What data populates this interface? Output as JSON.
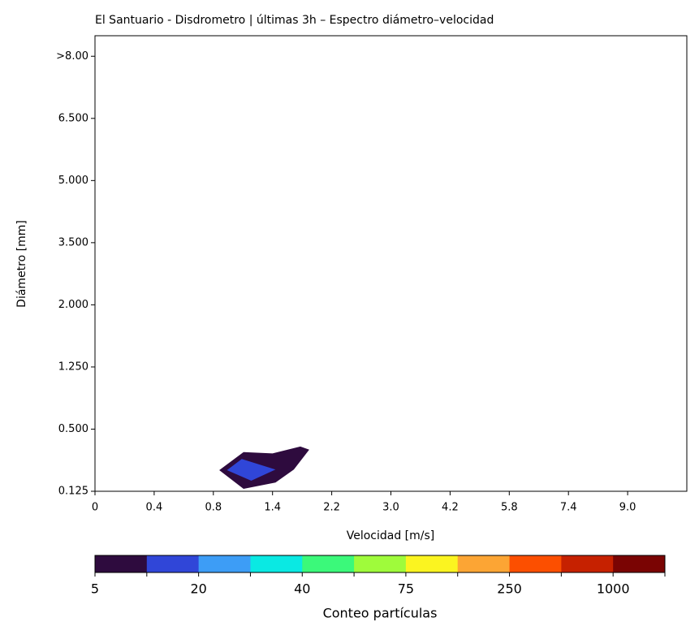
{
  "chart_data": {
    "type": "contour",
    "title": "El Santuario - Disdrometro | últimas 3h – Espectro diámetro–velocidad",
    "x_label": "Velocidad [m/s]",
    "y_label": "Diámetro [mm]",
    "xlim": [
      0,
      10
    ],
    "xticks": [
      {
        "value": 0,
        "label": "0"
      },
      {
        "value": 1,
        "label": "0.4"
      },
      {
        "value": 2,
        "label": "0.8"
      },
      {
        "value": 3,
        "label": "1.4"
      },
      {
        "value": 4,
        "label": "2.2"
      },
      {
        "value": 5,
        "label": "3.0"
      },
      {
        "value": 6,
        "label": "4.2"
      },
      {
        "value": 7,
        "label": "5.8"
      },
      {
        "value": 8,
        "label": "7.4"
      },
      {
        "value": 9,
        "label": "9.0"
      }
    ],
    "ylim": [
      0,
      7.33
    ],
    "yticks": [
      {
        "value": 0,
        "label": "0.125"
      },
      {
        "value": 1,
        "label": "0.500"
      },
      {
        "value": 2,
        "label": "1.250"
      },
      {
        "value": 3,
        "label": "2.000"
      },
      {
        "value": 4,
        "label": "3.500"
      },
      {
        "value": 5,
        "label": "5.000"
      },
      {
        "value": 6,
        "label": "6.500"
      },
      {
        "value": 7,
        "label": ">8.00"
      }
    ],
    "contours": [
      {
        "color": "#2e0b3e",
        "x": [
          2.1,
          2.51,
          3.0,
          3.47,
          3.62,
          3.36,
          3.05,
          2.51
        ],
        "y": [
          0.34,
          0.63,
          0.61,
          0.72,
          0.67,
          0.35,
          0.14,
          0.04
        ]
      },
      {
        "color": "#3046d8",
        "x": [
          2.23,
          2.48,
          3.05,
          2.64
        ],
        "y": [
          0.34,
          0.52,
          0.35,
          0.17
        ]
      }
    ],
    "colorbar": {
      "label": "Conteo partículas",
      "colors": [
        "#2e0b3e",
        "#3046d8",
        "#3d9df6",
        "#0ae9e3",
        "#3bf97a",
        "#9ffb3b",
        "#fbf420",
        "#fca534",
        "#fc4f00",
        "#c62100",
        "#7a0403"
      ],
      "levels": [
        5,
        20,
        40,
        75,
        250,
        1000
      ]
    }
  }
}
